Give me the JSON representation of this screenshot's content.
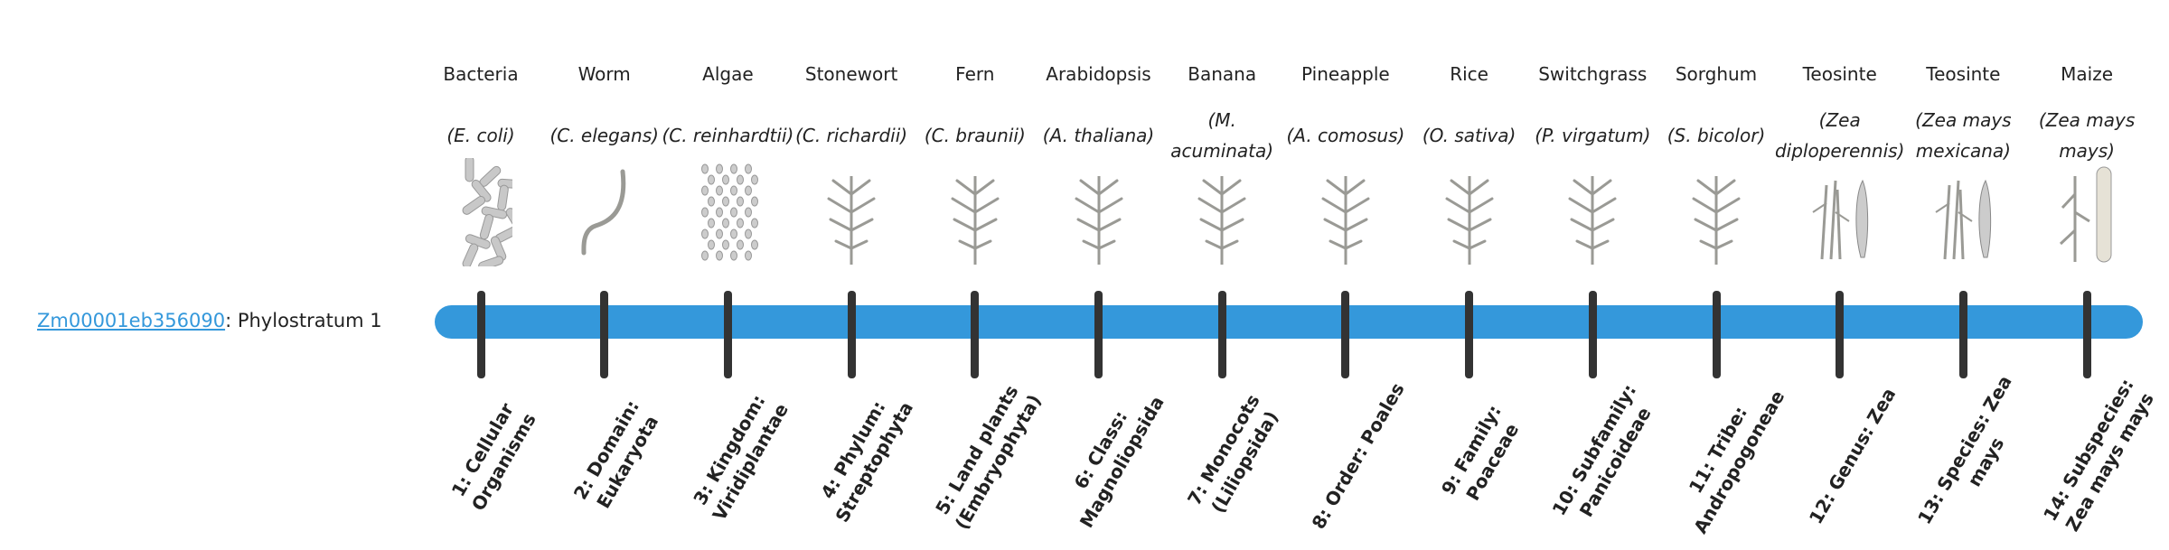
{
  "gene": {
    "id": "Zm00001eb356090",
    "separator": ":",
    "phylostratum": "Phylostratum 1"
  },
  "colors": {
    "bar": "#3498db",
    "tick": "#333333",
    "illustration": "#9a9a95"
  },
  "strata": [
    {
      "name": "Bacteria",
      "species": "(E. coli)",
      "icon": "bacteria-icon",
      "rank": "1: Cellular Organisms"
    },
    {
      "name": "Worm",
      "species": "(C. elegans)",
      "icon": "worm-icon",
      "rank": "2: Domain: Eukaryota"
    },
    {
      "name": "Algae",
      "species": "(C. reinhardtii)",
      "icon": "algae-icon",
      "rank": "3: Kingdom: Viridiplantae"
    },
    {
      "name": "Stonewort",
      "species": "(C. richardii)",
      "icon": "stonewort-icon",
      "rank": "4: Phylum: Streptophyta"
    },
    {
      "name": "Fern",
      "species": "(C. braunii)",
      "icon": "fern-icon",
      "rank": "5: Land plants (Embryophyta)"
    },
    {
      "name": "Arabidopsis",
      "species": "(A. thaliana)",
      "icon": "arabidopsis-icon",
      "rank": "6: Class: Magnoliopsida"
    },
    {
      "name": "Banana",
      "species": "(M. acuminata)",
      "icon": "banana-plant-icon",
      "rank": "7: Monocots (Liliopsida)"
    },
    {
      "name": "Pineapple",
      "species": "(A. comosus)",
      "icon": "pineapple-icon",
      "rank": "8: Order: Poales"
    },
    {
      "name": "Rice",
      "species": "(O. sativa)",
      "icon": "rice-icon",
      "rank": "9: Family: Poaceae"
    },
    {
      "name": "Switchgrass",
      "species": "(P. virgatum)",
      "icon": "switchgrass-icon",
      "rank": "10: Subfamily: Panicoideae"
    },
    {
      "name": "Sorghum",
      "species": "(S. bicolor)",
      "icon": "sorghum-icon",
      "rank": "11: Tribe: Andropogoneae"
    },
    {
      "name": "Teosinte",
      "species": "(Zea diploperennis)",
      "icon": "teosinte-icon",
      "rank": "12: Genus: Zea"
    },
    {
      "name": "Teosinte",
      "species": "(Zea mays mexicana)",
      "icon": "teosinte-icon",
      "rank": "13: Species: Zea mays"
    },
    {
      "name": "Maize",
      "species": "(Zea mays mays)",
      "icon": "maize-icon",
      "rank": "14: Subspecies: Zea mays mays"
    }
  ]
}
